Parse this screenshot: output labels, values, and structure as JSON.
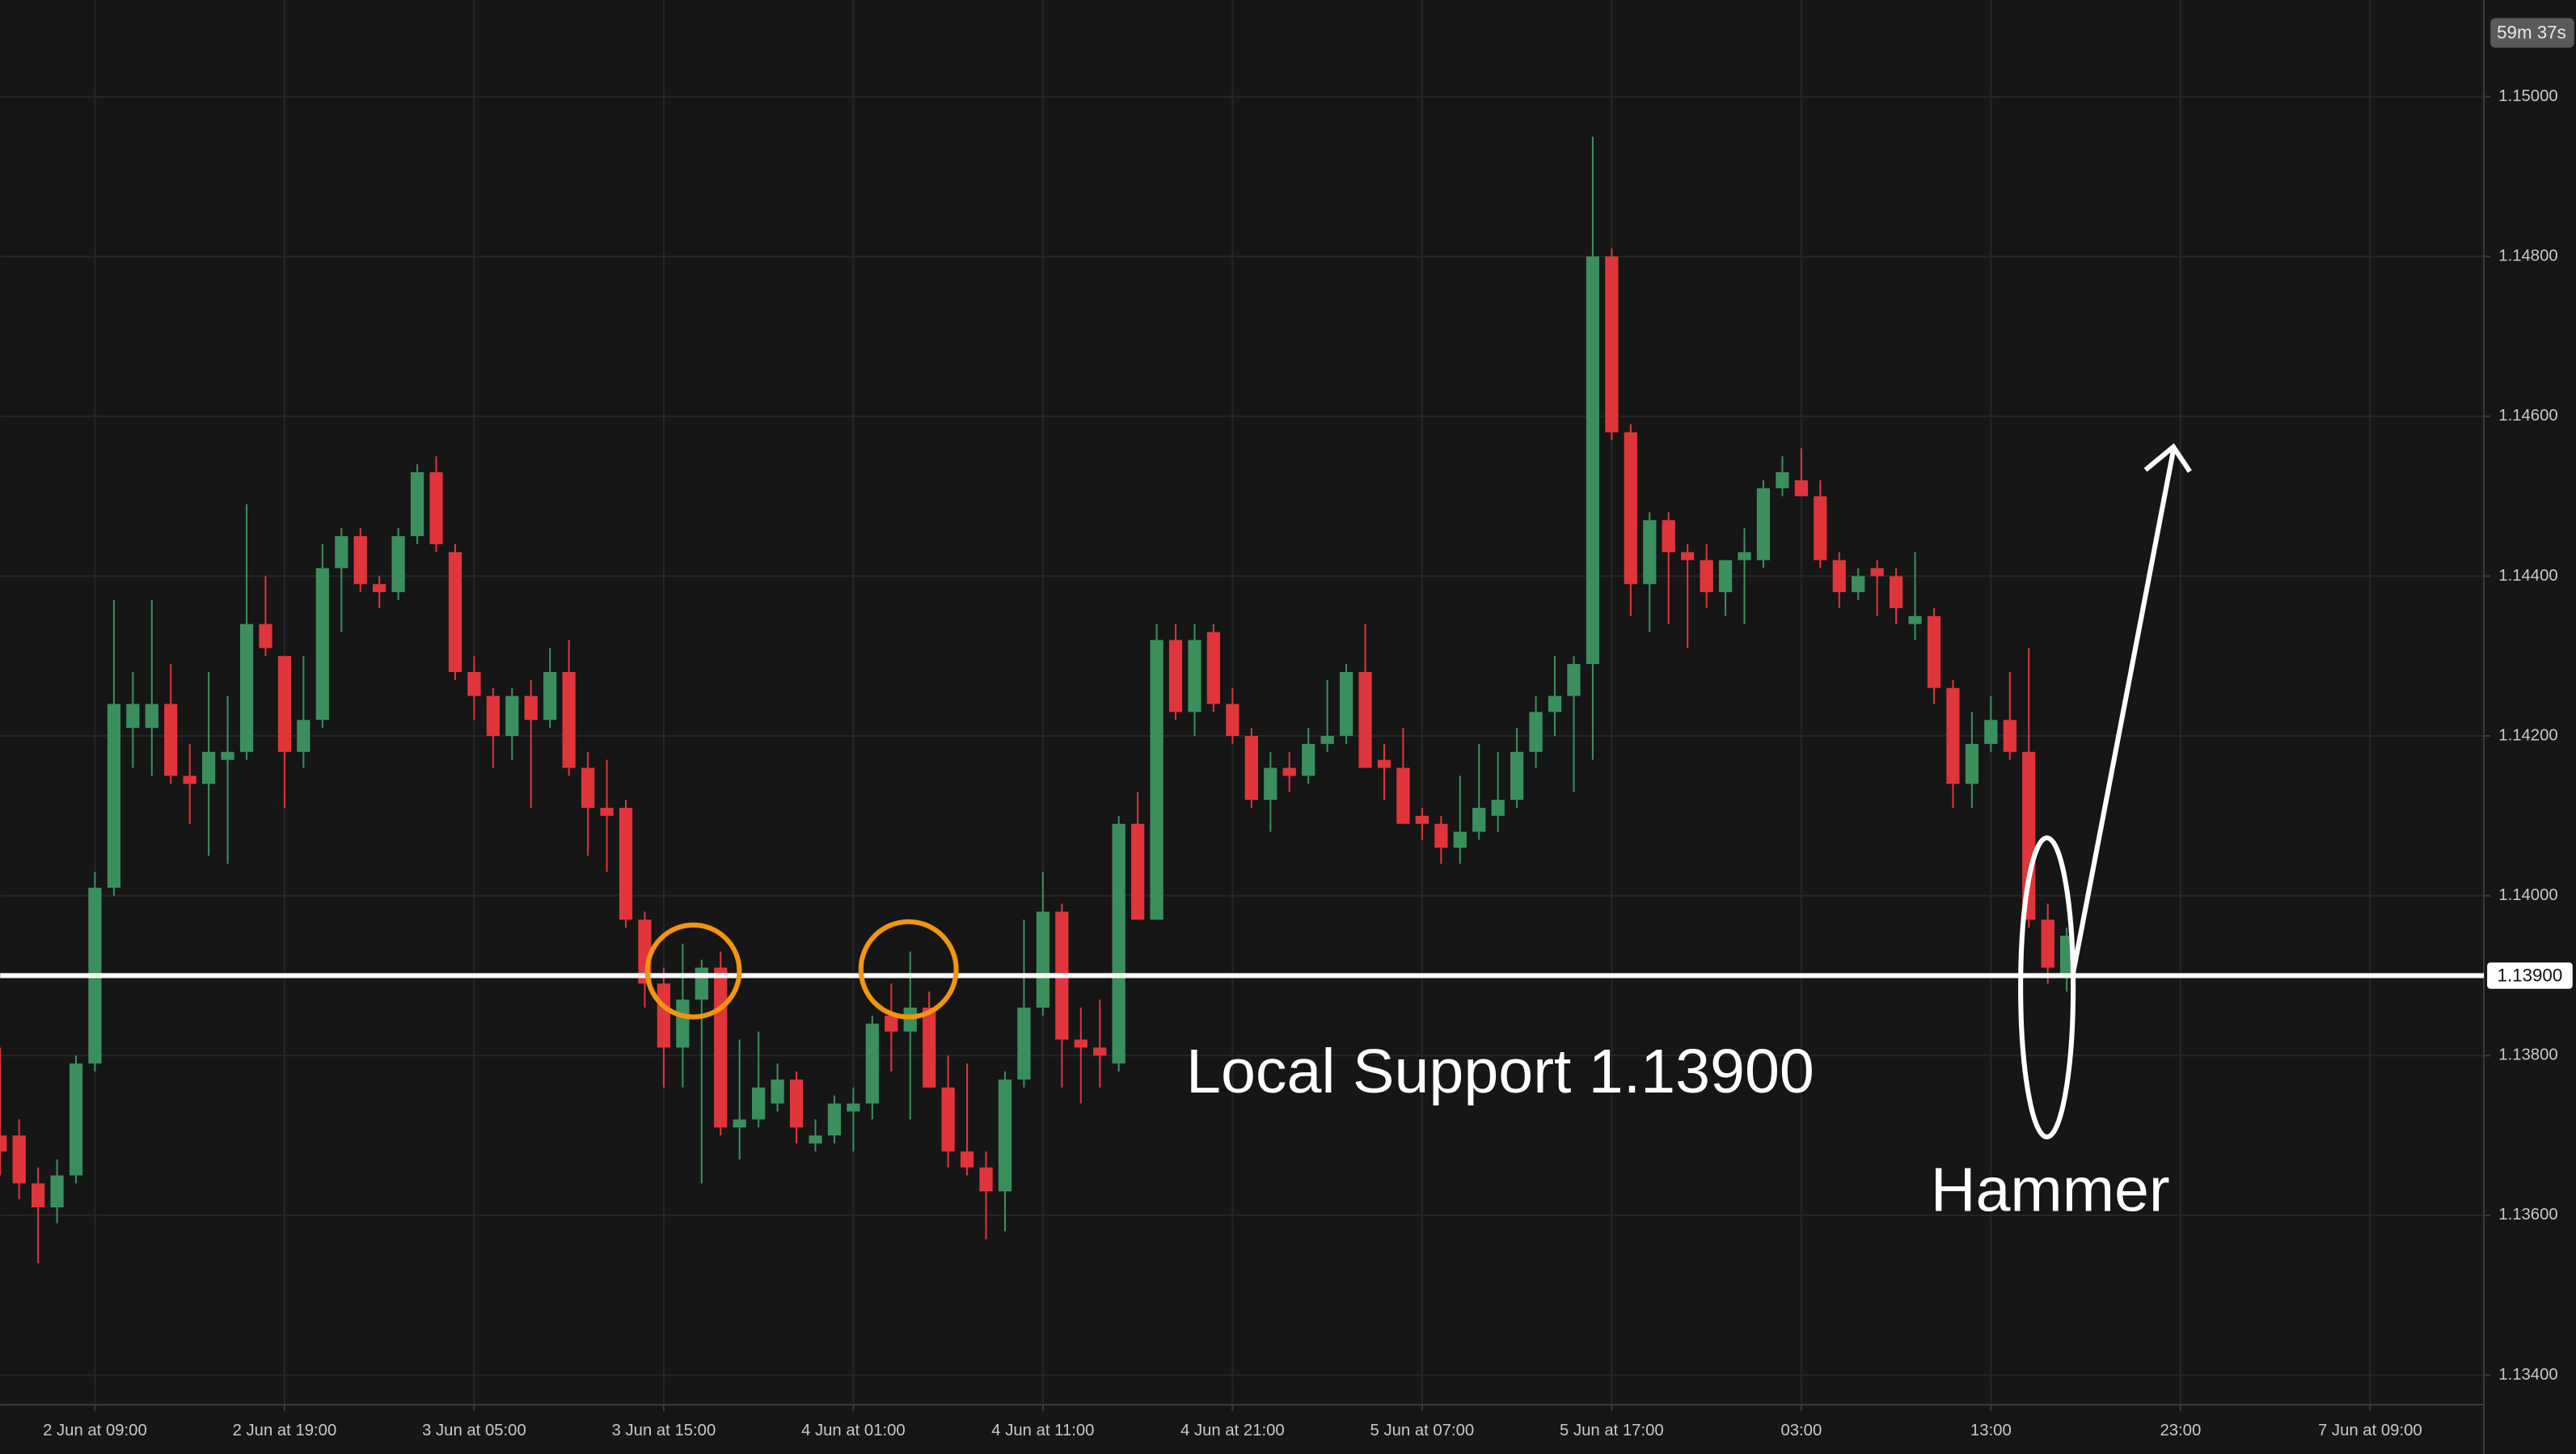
{
  "chart_data": {
    "type": "candlestick",
    "x": [
      "2 Jun 04:00",
      "2 Jun 05:00",
      "2 Jun 06:00",
      "2 Jun 07:00",
      "2 Jun 08:00",
      "2 Jun 09:00",
      "2 Jun 10:00",
      "2 Jun 11:00",
      "2 Jun 12:00",
      "2 Jun 13:00",
      "2 Jun 14:00",
      "2 Jun 15:00",
      "2 Jun 16:00",
      "2 Jun 17:00",
      "2 Jun 18:00",
      "2 Jun 19:00",
      "2 Jun 20:00",
      "2 Jun 21:00",
      "2 Jun 22:00",
      "2 Jun 23:00",
      "3 Jun 00:00",
      "3 Jun 01:00",
      "3 Jun 02:00",
      "3 Jun 03:00",
      "3 Jun 04:00",
      "3 Jun 05:00",
      "3 Jun 06:00",
      "3 Jun 07:00",
      "3 Jun 08:00",
      "3 Jun 09:00",
      "3 Jun 10:00",
      "3 Jun 11:00",
      "3 Jun 12:00",
      "3 Jun 13:00",
      "3 Jun 14:00",
      "3 Jun 15:00",
      "3 Jun 16:00",
      "3 Jun 17:00",
      "3 Jun 18:00",
      "3 Jun 19:00",
      "3 Jun 20:00",
      "3 Jun 21:00",
      "3 Jun 22:00",
      "3 Jun 23:00",
      "4 Jun 00:00",
      "4 Jun 01:00",
      "4 Jun 02:00",
      "4 Jun 03:00",
      "4 Jun 04:00",
      "4 Jun 05:00",
      "4 Jun 06:00",
      "4 Jun 07:00",
      "4 Jun 08:00",
      "4 Jun 09:00",
      "4 Jun 10:00",
      "4 Jun 11:00",
      "4 Jun 12:00",
      "4 Jun 13:00",
      "4 Jun 14:00",
      "4 Jun 15:00",
      "4 Jun 16:00",
      "4 Jun 17:00",
      "4 Jun 18:00",
      "4 Jun 19:00",
      "4 Jun 20:00",
      "4 Jun 21:00",
      "4 Jun 22:00",
      "4 Jun 23:00",
      "5 Jun 00:00",
      "5 Jun 01:00",
      "5 Jun 02:00",
      "5 Jun 03:00",
      "5 Jun 04:00",
      "5 Jun 05:00",
      "5 Jun 06:00",
      "5 Jun 07:00",
      "5 Jun 08:00",
      "5 Jun 09:00",
      "5 Jun 10:00",
      "5 Jun 11:00",
      "5 Jun 12:00",
      "5 Jun 13:00",
      "5 Jun 14:00",
      "5 Jun 15:00",
      "5 Jun 16:00",
      "5 Jun 17:00",
      "5 Jun 18:00",
      "5 Jun 19:00",
      "5 Jun 20:00",
      "5 Jun 21:00",
      "5 Jun 22:00",
      "5 Jun 23:00",
      "6 Jun 00:00",
      "6 Jun 01:00",
      "6 Jun 02:00",
      "6 Jun 03:00",
      "6 Jun 04:00",
      "6 Jun 05:00",
      "6 Jun 06:00",
      "6 Jun 07:00",
      "6 Jun 08:00",
      "6 Jun 09:00",
      "6 Jun 10:00",
      "6 Jun 11:00",
      "6 Jun 12:00",
      "6 Jun 13:00",
      "6 Jun 14:00",
      "6 Jun 15:00",
      "6 Jun 16:00",
      "6 Jun 17:00"
    ],
    "open": [
      1.137,
      1.137,
      1.1364,
      1.1361,
      1.1365,
      1.1379,
      1.1401,
      1.1421,
      1.1421,
      1.1424,
      1.1415,
      1.1414,
      1.1417,
      1.1418,
      1.1434,
      1.143,
      1.1418,
      1.1422,
      1.1441,
      1.1445,
      1.1439,
      1.1438,
      1.1445,
      1.1453,
      1.1443,
      1.1428,
      1.1425,
      1.142,
      1.1425,
      1.1422,
      1.1428,
      1.1416,
      1.1411,
      1.1411,
      1.1397,
      1.1389,
      1.1381,
      1.1387,
      1.1391,
      1.1371,
      1.1372,
      1.1374,
      1.1377,
      1.1369,
      1.137,
      1.1373,
      1.1374,
      1.1385,
      1.1383,
      1.1386,
      1.1376,
      1.1368,
      1.1366,
      1.1363,
      1.1377,
      1.1386,
      1.1398,
      1.1382,
      1.1381,
      1.1379,
      1.1409,
      1.1397,
      1.1432,
      1.1423,
      1.1433,
      1.1424,
      1.142,
      1.1412,
      1.1416,
      1.1415,
      1.1419,
      1.142,
      1.1428,
      1.1417,
      1.1416,
      1.141,
      1.1409,
      1.1406,
      1.1408,
      1.141,
      1.1412,
      1.1418,
      1.1423,
      1.1425,
      1.1429,
      1.148,
      1.1458,
      1.1439,
      1.1447,
      1.1443,
      1.1442,
      1.1438,
      1.1442,
      1.1442,
      1.1451,
      1.1452,
      1.145,
      1.1442,
      1.1438,
      1.1441,
      1.144,
      1.1434,
      1.1435,
      1.1426,
      1.1414,
      1.1419,
      1.1422,
      1.1418,
      1.1397,
      1.139
    ],
    "high": [
      1.1381,
      1.1372,
      1.1366,
      1.1367,
      1.138,
      1.1403,
      1.1437,
      1.1428,
      1.1437,
      1.1429,
      1.1419,
      1.1428,
      1.1425,
      1.1449,
      1.144,
      1.143,
      1.143,
      1.1444,
      1.1446,
      1.1446,
      1.144,
      1.1446,
      1.1454,
      1.1455,
      1.1444,
      1.143,
      1.1426,
      1.1426,
      1.1427,
      1.1431,
      1.1432,
      1.1418,
      1.1417,
      1.1412,
      1.1398,
      1.1391,
      1.1394,
      1.1392,
      1.1393,
      1.1382,
      1.1383,
      1.1379,
      1.1378,
      1.1372,
      1.1375,
      1.1376,
      1.1385,
      1.1389,
      1.1393,
      1.1388,
      1.138,
      1.1379,
      1.1368,
      1.1378,
      1.1397,
      1.1403,
      1.1399,
      1.1386,
      1.1387,
      1.141,
      1.1413,
      1.1434,
      1.1434,
      1.1434,
      1.1434,
      1.1426,
      1.1421,
      1.1418,
      1.1418,
      1.1421,
      1.1427,
      1.1429,
      1.1434,
      1.1419,
      1.1421,
      1.1411,
      1.141,
      1.1415,
      1.1419,
      1.1418,
      1.1421,
      1.1425,
      1.143,
      1.143,
      1.1495,
      1.1481,
      1.1459,
      1.1448,
      1.1448,
      1.1444,
      1.1444,
      1.1442,
      1.1446,
      1.1452,
      1.1455,
      1.1456,
      1.1452,
      1.1443,
      1.1441,
      1.1442,
      1.1441,
      1.1443,
      1.1436,
      1.1427,
      1.1423,
      1.1425,
      1.1428,
      1.1431,
      1.1399,
      1.1396
    ],
    "low": [
      1.1365,
      1.1362,
      1.1354,
      1.1359,
      1.1364,
      1.1378,
      1.14,
      1.1416,
      1.1415,
      1.1414,
      1.1409,
      1.1405,
      1.1404,
      1.1417,
      1.143,
      1.1411,
      1.1416,
      1.1421,
      1.1433,
      1.1438,
      1.1436,
      1.1437,
      1.1444,
      1.1443,
      1.1427,
      1.1422,
      1.1416,
      1.1417,
      1.1411,
      1.1421,
      1.1415,
      1.1405,
      1.1403,
      1.1396,
      1.1386,
      1.1376,
      1.1376,
      1.1364,
      1.137,
      1.1367,
      1.1371,
      1.1373,
      1.1369,
      1.1368,
      1.1369,
      1.1368,
      1.1372,
      1.1378,
      1.1372,
      1.1376,
      1.1366,
      1.1365,
      1.1357,
      1.1358,
      1.1376,
      1.1385,
      1.1376,
      1.1374,
      1.1376,
      1.1378,
      1.1397,
      1.1397,
      1.1422,
      1.142,
      1.1423,
      1.1419,
      1.1411,
      1.1408,
      1.1413,
      1.1414,
      1.1418,
      1.1419,
      1.1416,
      1.1412,
      1.1409,
      1.1407,
      1.1404,
      1.1404,
      1.1407,
      1.1408,
      1.1411,
      1.1416,
      1.142,
      1.1413,
      1.1417,
      1.1457,
      1.1435,
      1.1433,
      1.1434,
      1.1431,
      1.1436,
      1.1435,
      1.1434,
      1.1441,
      1.145,
      1.145,
      1.1441,
      1.1436,
      1.1437,
      1.1435,
      1.1434,
      1.1432,
      1.1424,
      1.1411,
      1.1411,
      1.1418,
      1.1417,
      1.1396,
      1.1389,
      1.1388
    ],
    "close": [
      1.1368,
      1.1364,
      1.1361,
      1.1365,
      1.1379,
      1.1401,
      1.1424,
      1.1424,
      1.1424,
      1.1415,
      1.1414,
      1.1418,
      1.1418,
      1.1434,
      1.1431,
      1.1418,
      1.1422,
      1.1441,
      1.1445,
      1.1439,
      1.1438,
      1.1445,
      1.1453,
      1.1444,
      1.1428,
      1.1425,
      1.142,
      1.1425,
      1.1422,
      1.1428,
      1.1416,
      1.1411,
      1.141,
      1.1397,
      1.1389,
      1.1381,
      1.1387,
      1.1391,
      1.1371,
      1.1372,
      1.1376,
      1.1377,
      1.1371,
      1.137,
      1.1374,
      1.1374,
      1.1384,
      1.1383,
      1.1386,
      1.1376,
      1.1368,
      1.1366,
      1.1363,
      1.1377,
      1.1386,
      1.1398,
      1.1382,
      1.1381,
      1.138,
      1.1409,
      1.1397,
      1.1432,
      1.1423,
      1.1432,
      1.1424,
      1.142,
      1.1412,
      1.1416,
      1.1415,
      1.1419,
      1.142,
      1.1428,
      1.1416,
      1.1416,
      1.1409,
      1.1409,
      1.1406,
      1.1408,
      1.1411,
      1.1412,
      1.1418,
      1.1423,
      1.1425,
      1.1429,
      1.148,
      1.1458,
      1.1439,
      1.1447,
      1.1443,
      1.1442,
      1.1438,
      1.1442,
      1.1443,
      1.1451,
      1.1453,
      1.145,
      1.1442,
      1.1438,
      1.144,
      1.144,
      1.1436,
      1.1435,
      1.1426,
      1.1414,
      1.1419,
      1.1422,
      1.1418,
      1.1397,
      1.1391,
      1.1395
    ],
    "up_color": "#3a8f5d",
    "down_color": "#e0353a",
    "xlim": [
      "2 Jun 04:00",
      "7 Jun 15:00"
    ],
    "xticks": [
      {
        "value": "2 Jun 09:00",
        "label": "2 Jun at 09:00"
      },
      {
        "value": "2 Jun 19:00",
        "label": "2 Jun at 19:00"
      },
      {
        "value": "3 Jun 05:00",
        "label": "3 Jun at 05:00"
      },
      {
        "value": "3 Jun 15:00",
        "label": "3 Jun at 15:00"
      },
      {
        "value": "4 Jun 01:00",
        "label": "4 Jun at 01:00"
      },
      {
        "value": "4 Jun 11:00",
        "label": "4 Jun at 11:00"
      },
      {
        "value": "4 Jun 21:00",
        "label": "4 Jun at 21:00"
      },
      {
        "value": "5 Jun 07:00",
        "label": "5 Jun at 07:00"
      },
      {
        "value": "5 Jun 17:00",
        "label": "5 Jun at 17:00"
      },
      {
        "value": "6 Jun 03:00",
        "label": "03:00"
      },
      {
        "value": "6 Jun 13:00",
        "label": "13:00"
      },
      {
        "value": "6 Jun 23:00",
        "label": "23:00"
      },
      {
        "value": "7 Jun 09:00",
        "label": "7 Jun at 09:00"
      }
    ],
    "ylim": [
      1.13363,
      1.15121
    ],
    "yticks": [
      {
        "value": 1.15,
        "label": "1.15000"
      },
      {
        "value": 1.148,
        "label": "1.14800"
      },
      {
        "value": 1.146,
        "label": "1.14600"
      },
      {
        "value": 1.144,
        "label": "1.14400"
      },
      {
        "value": 1.142,
        "label": "1.14200"
      },
      {
        "value": 1.14,
        "label": "1.14000"
      },
      {
        "value": 1.138,
        "label": "1.13800"
      },
      {
        "value": 1.136,
        "label": "1.13600"
      },
      {
        "value": 1.134,
        "label": "1.13400"
      }
    ],
    "grid": true,
    "support": {
      "value": 1.139,
      "label": "1.13900"
    },
    "annotations": [
      "Local Support 1.13900",
      "Hammer"
    ],
    "countdown": "59m 37s"
  }
}
